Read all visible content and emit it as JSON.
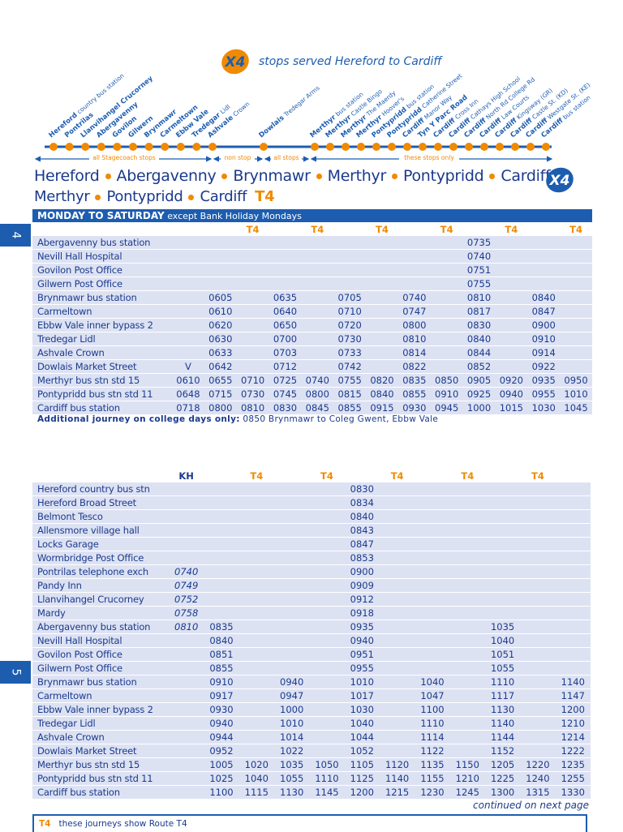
{
  "header": {
    "logo": "X4",
    "title": "stops served Hereford to Cardiff"
  },
  "stops": [
    {
      "name": "Hereford",
      "detail": "country bus station"
    },
    {
      "name": "Pontrilas"
    },
    {
      "name": "Llanvihangel Crucorney"
    },
    {
      "name": "Abergavenny"
    },
    {
      "name": "Govilon"
    },
    {
      "name": "Gilwern"
    },
    {
      "name": "Brynmawr"
    },
    {
      "name": "Carmeltown"
    },
    {
      "name": "Ebbw Vale"
    },
    {
      "name": "Tredegar",
      "detail": "Lidl"
    },
    {
      "name": "Ashvale",
      "detail": "Crown"
    },
    {
      "name": "Dowlais",
      "detail": "Tredegar Arms"
    },
    {
      "name": "Merthyr",
      "detail": "bus station"
    },
    {
      "name": "Merthyr",
      "detail": "Castle Bingo"
    },
    {
      "name": "Merthyr",
      "detail": "The Maerdy"
    },
    {
      "name": "Merthyr",
      "detail": "Hoover's"
    },
    {
      "name": "Pontypridd",
      "detail": "bus station"
    },
    {
      "name": "Pontypridd",
      "detail": "Catherine Street"
    },
    {
      "name": "Cardiff",
      "detail": "Manor Way"
    },
    {
      "name": "Tyn Y Parc Road"
    },
    {
      "name": "Cardiff",
      "detail": "Cross Inn"
    },
    {
      "name": "Cardiff",
      "detail": "Cathays High School"
    },
    {
      "name": "Cardiff",
      "detail": "North Rd College Rd"
    },
    {
      "name": "Cardiff",
      "detail": "Law Courts"
    },
    {
      "name": "Cardiff",
      "detail": "Kingsway (GR)"
    },
    {
      "name": "Cardiff",
      "detail": "Castle St. (KD)"
    },
    {
      "name": "Cardiff",
      "detail": "Westgate St. (KE)"
    },
    {
      "name": "Cardiff",
      "detail": "bus station"
    }
  ],
  "segments": [
    "all Stagecoach stops",
    "non stop",
    "all stops",
    "these stops only"
  ],
  "route": {
    "line1": [
      "Hereford",
      "Abergavenny",
      "Brynmawr",
      "Merthyr",
      "Pontypridd",
      "Cardiff"
    ],
    "logo": "X4",
    "line2": [
      "Merthyr",
      "Pontypridd",
      "Cardiff"
    ],
    "line2_route": "T4"
  },
  "pages": [
    "4",
    "5"
  ],
  "timetable1": {
    "day": "MONDAY TO SATURDAY",
    "note": "except Bank Holiday Mondays",
    "columns": [
      null,
      null,
      "T4",
      null,
      "T4",
      null,
      "T4",
      null,
      "T4",
      null,
      "T4",
      null,
      "T4"
    ],
    "rows": [
      {
        "stop": "Abergavenny bus station",
        "times": [
          null,
          null,
          null,
          null,
          null,
          null,
          null,
          null,
          null,
          "0735",
          null,
          null,
          null
        ]
      },
      {
        "stop": "Nevill Hall Hospital",
        "times": [
          null,
          null,
          null,
          null,
          null,
          null,
          null,
          null,
          null,
          "0740",
          null,
          null,
          null
        ]
      },
      {
        "stop": "Govilon Post Office",
        "times": [
          null,
          null,
          null,
          null,
          null,
          null,
          null,
          null,
          null,
          "0751",
          null,
          null,
          null
        ]
      },
      {
        "stop": "Gilwern Post Office",
        "times": [
          null,
          null,
          null,
          null,
          null,
          null,
          null,
          null,
          null,
          "0755",
          null,
          null,
          null
        ]
      },
      {
        "stop": "Brynmawr bus station",
        "times": [
          null,
          "0605",
          null,
          "0635",
          null,
          "0705",
          null,
          "0740",
          null,
          "0810",
          null,
          "0840",
          null
        ]
      },
      {
        "stop": "Carmeltown",
        "times": [
          null,
          "0610",
          null,
          "0640",
          null,
          "0710",
          null,
          "0747",
          null,
          "0817",
          null,
          "0847",
          null
        ]
      },
      {
        "stop": "Ebbw Vale inner bypass 2",
        "times": [
          null,
          "0620",
          null,
          "0650",
          null,
          "0720",
          null,
          "0800",
          null,
          "0830",
          null,
          "0900",
          null
        ]
      },
      {
        "stop": "Tredegar Lidl",
        "times": [
          null,
          "0630",
          null,
          "0700",
          null,
          "0730",
          null,
          "0810",
          null,
          "0840",
          null,
          "0910",
          null
        ]
      },
      {
        "stop": "Ashvale Crown",
        "times": [
          null,
          "0633",
          null,
          "0703",
          null,
          "0733",
          null,
          "0814",
          null,
          "0844",
          null,
          "0914",
          null
        ]
      },
      {
        "stop": "Dowlais Market Street",
        "times": [
          "V",
          "0642",
          null,
          "0712",
          null,
          "0742",
          null,
          "0822",
          null,
          "0852",
          null,
          "0922",
          null
        ]
      },
      {
        "stop": "Merthyr  bus stn std 15",
        "times": [
          "0610",
          "0655",
          "0710",
          "0725",
          "0740",
          "0755",
          "0820",
          "0835",
          "0850",
          "0905",
          "0920",
          "0935",
          "0950"
        ]
      },
      {
        "stop": "Pontypridd bus stn std 11",
        "times": [
          "0648",
          "0715",
          "0730",
          "0745",
          "0800",
          "0815",
          "0840",
          "0855",
          "0910",
          "0925",
          "0940",
          "0955",
          "1010"
        ]
      },
      {
        "stop": "Cardiff bus station",
        "times": [
          "0718",
          "0800",
          "0810",
          "0830",
          "0845",
          "0855",
          "0915",
          "0930",
          "0945",
          "1000",
          "1015",
          "1030",
          "1045"
        ]
      }
    ]
  },
  "college_note": {
    "label": "Additional journey on college days only:",
    "text": "0850 Brynmawr to Coleg Gwent, Ebbw Vale"
  },
  "timetable2": {
    "columns": [
      "KH",
      null,
      "T4",
      null,
      "T4",
      null,
      "T4",
      null,
      "T4",
      null,
      "T4",
      null
    ],
    "rows": [
      {
        "stop": "Hereford country bus stn",
        "times": [
          null,
          null,
          null,
          null,
          null,
          "0830",
          null,
          null,
          null,
          null,
          null,
          null
        ]
      },
      {
        "stop": "Hereford Broad Street",
        "times": [
          null,
          null,
          null,
          null,
          null,
          "0834",
          null,
          null,
          null,
          null,
          null,
          null
        ]
      },
      {
        "stop": "Belmont Tesco",
        "times": [
          null,
          null,
          null,
          null,
          null,
          "0840",
          null,
          null,
          null,
          null,
          null,
          null
        ]
      },
      {
        "stop": "Allensmore village hall",
        "times": [
          null,
          null,
          null,
          null,
          null,
          "0843",
          null,
          null,
          null,
          null,
          null,
          null
        ]
      },
      {
        "stop": "Locks Garage",
        "times": [
          null,
          null,
          null,
          null,
          null,
          "0847",
          null,
          null,
          null,
          null,
          null,
          null
        ]
      },
      {
        "stop": "Wormbridge Post Office",
        "times": [
          null,
          null,
          null,
          null,
          null,
          "0853",
          null,
          null,
          null,
          null,
          null,
          null
        ]
      },
      {
        "stop": "Pontrilas telephone exch",
        "times": [
          "0740",
          null,
          null,
          null,
          null,
          "0900",
          null,
          null,
          null,
          null,
          null,
          null
        ]
      },
      {
        "stop": "Pandy Inn",
        "times": [
          "0749",
          null,
          null,
          null,
          null,
          "0909",
          null,
          null,
          null,
          null,
          null,
          null
        ]
      },
      {
        "stop": "Llanvihangel Crucorney",
        "times": [
          "0752",
          null,
          null,
          null,
          null,
          "0912",
          null,
          null,
          null,
          null,
          null,
          null
        ]
      },
      {
        "stop": "Mardy",
        "times": [
          "0758",
          null,
          null,
          null,
          null,
          "0918",
          null,
          null,
          null,
          null,
          null,
          null
        ]
      },
      {
        "stop": "Abergavenny bus station",
        "times": [
          "0810",
          "0835",
          null,
          null,
          null,
          "0935",
          null,
          null,
          null,
          "1035",
          null,
          null
        ]
      },
      {
        "stop": "Nevill Hall Hospital",
        "times": [
          null,
          "0840",
          null,
          null,
          null,
          "0940",
          null,
          null,
          null,
          "1040",
          null,
          null
        ]
      },
      {
        "stop": "Govilon Post Office",
        "times": [
          null,
          "0851",
          null,
          null,
          null,
          "0951",
          null,
          null,
          null,
          "1051",
          null,
          null
        ]
      },
      {
        "stop": "Gilwern Post Office",
        "times": [
          null,
          "0855",
          null,
          null,
          null,
          "0955",
          null,
          null,
          null,
          "1055",
          null,
          null
        ]
      },
      {
        "stop": "Brynmawr bus station",
        "times": [
          null,
          "0910",
          null,
          "0940",
          null,
          "1010",
          null,
          "1040",
          null,
          "1110",
          null,
          "1140"
        ]
      },
      {
        "stop": "Carmeltown",
        "times": [
          null,
          "0917",
          null,
          "0947",
          null,
          "1017",
          null,
          "1047",
          null,
          "1117",
          null,
          "1147"
        ]
      },
      {
        "stop": "Ebbw Vale inner bypass 2",
        "times": [
          null,
          "0930",
          null,
          "1000",
          null,
          "1030",
          null,
          "1100",
          null,
          "1130",
          null,
          "1200"
        ]
      },
      {
        "stop": "Tredegar Lidl",
        "times": [
          null,
          "0940",
          null,
          "1010",
          null,
          "1040",
          null,
          "1110",
          null,
          "1140",
          null,
          "1210"
        ]
      },
      {
        "stop": "Ashvale Crown",
        "times": [
          null,
          "0944",
          null,
          "1014",
          null,
          "1044",
          null,
          "1114",
          null,
          "1144",
          null,
          "1214"
        ]
      },
      {
        "stop": "Dowlais Market Street",
        "times": [
          null,
          "0952",
          null,
          "1022",
          null,
          "1052",
          null,
          "1122",
          null,
          "1152",
          null,
          "1222"
        ]
      },
      {
        "stop": "Merthyr  bus stn std 15",
        "times": [
          null,
          "1005",
          "1020",
          "1035",
          "1050",
          "1105",
          "1120",
          "1135",
          "1150",
          "1205",
          "1220",
          "1235"
        ]
      },
      {
        "stop": "Pontypridd bus stn std 11",
        "times": [
          null,
          "1025",
          "1040",
          "1055",
          "1110",
          "1125",
          "1140",
          "1155",
          "1210",
          "1225",
          "1240",
          "1255"
        ]
      },
      {
        "stop": "Cardiff bus station",
        "times": [
          null,
          "1100",
          "1115",
          "1130",
          "1145",
          "1200",
          "1215",
          "1230",
          "1245",
          "1300",
          "1315",
          "1330"
        ]
      }
    ]
  },
  "continued": "continued on next page",
  "key": {
    "code": "T4",
    "text": "these journeys show Route T4"
  }
}
